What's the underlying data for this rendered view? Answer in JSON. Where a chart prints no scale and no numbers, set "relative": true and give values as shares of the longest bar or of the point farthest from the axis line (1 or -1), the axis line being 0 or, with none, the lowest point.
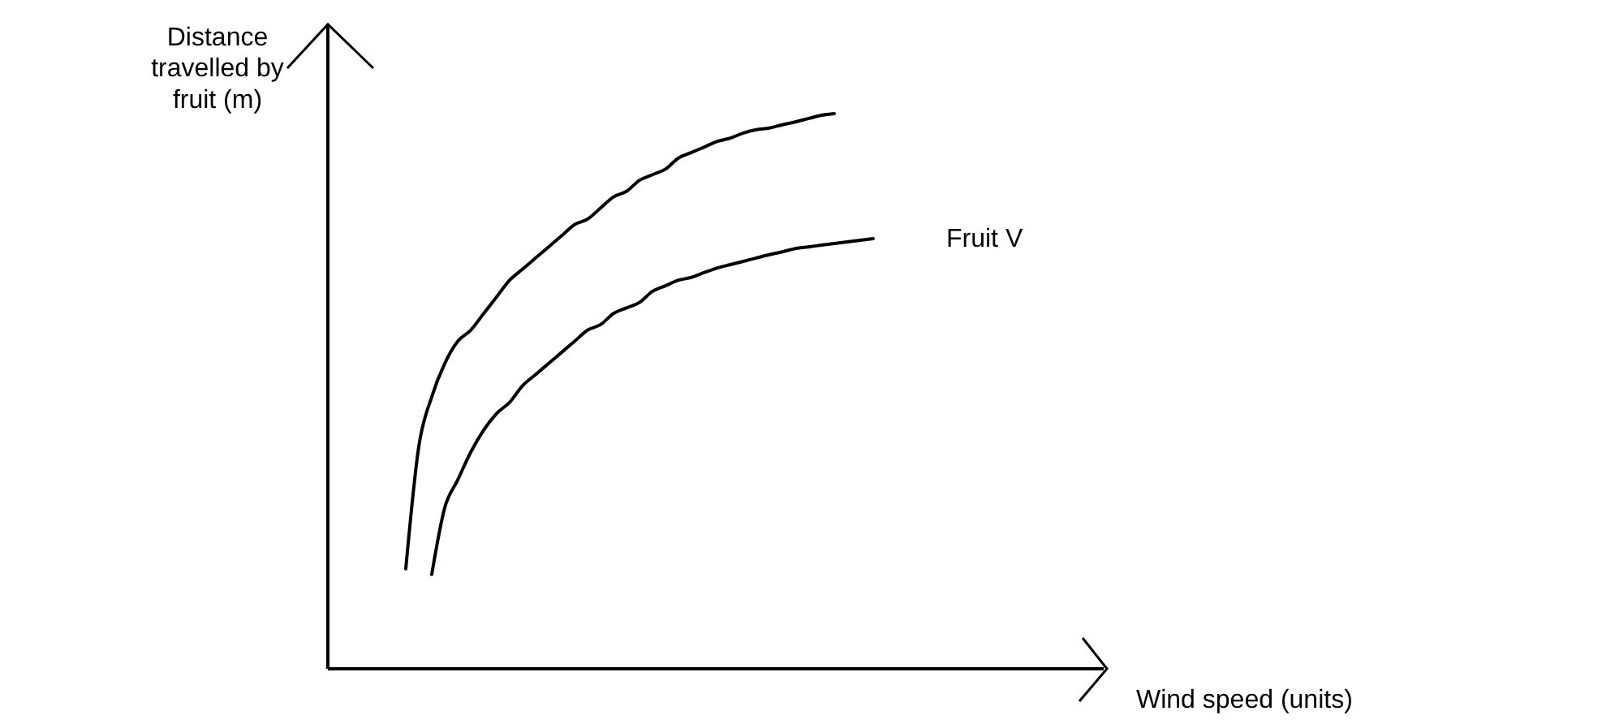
{
  "chart_data": {
    "type": "line",
    "relative": true,
    "xlabel": "Wind speed (units)",
    "ylabel": "Distance travelled by fruit (m)",
    "categories": [
      null,
      null,
      null,
      null,
      null,
      null,
      null,
      null,
      null,
      null,
      null,
      null,
      null,
      null,
      null,
      null,
      null,
      null,
      null,
      null,
      null,
      null,
      null,
      null,
      null,
      null,
      null,
      null,
      null,
      null,
      null,
      null,
      null,
      null,
      null,
      null,
      null,
      null,
      null,
      null,
      null,
      null,
      null,
      null,
      null,
      null,
      null,
      null,
      null,
      null,
      null,
      null,
      null,
      null,
      null,
      null,
      null,
      null,
      null,
      null
    ],
    "series": [
      {
        "color": "#000000",
        "values": [
          null,
          null,
          null,
          null,
          null,
          null,
          0.18,
          0.4,
          0.49,
          0.55,
          0.59,
          0.61,
          0.64,
          0.67,
          0.7,
          0.72,
          0.74,
          0.76,
          0.78,
          0.8,
          0.81,
          0.83,
          0.85,
          0.86,
          0.88,
          0.89,
          0.9,
          0.92,
          0.93,
          0.94,
          0.95,
          0.956,
          0.965,
          0.971,
          0.974,
          0.98,
          0.985,
          0.991,
          0.997,
          1.0,
          null,
          null,
          null,
          null,
          null,
          null,
          null,
          null,
          null,
          null,
          null,
          null,
          null,
          null,
          null,
          null,
          null,
          null,
          null,
          null
        ]
      },
      {
        "name": "Fruit V",
        "color": "#000000",
        "values": [
          null,
          null,
          null,
          null,
          null,
          null,
          null,
          null,
          0.17,
          0.29,
          0.34,
          0.39,
          0.43,
          0.46,
          0.48,
          0.51,
          0.53,
          0.55,
          0.57,
          0.59,
          0.61,
          0.62,
          0.64,
          0.65,
          0.66,
          0.68,
          0.69,
          0.7,
          0.705,
          0.714,
          0.722,
          0.728,
          0.734,
          0.74,
          0.746,
          0.751,
          0.757,
          0.76,
          0.763,
          0.766,
          0.769,
          0.772,
          0.775,
          null,
          null,
          null,
          null,
          null,
          null,
          null,
          null,
          null,
          null,
          null,
          null,
          null,
          null,
          null,
          null,
          null
        ]
      }
    ],
    "marker": "none",
    "line_style": "solid"
  }
}
